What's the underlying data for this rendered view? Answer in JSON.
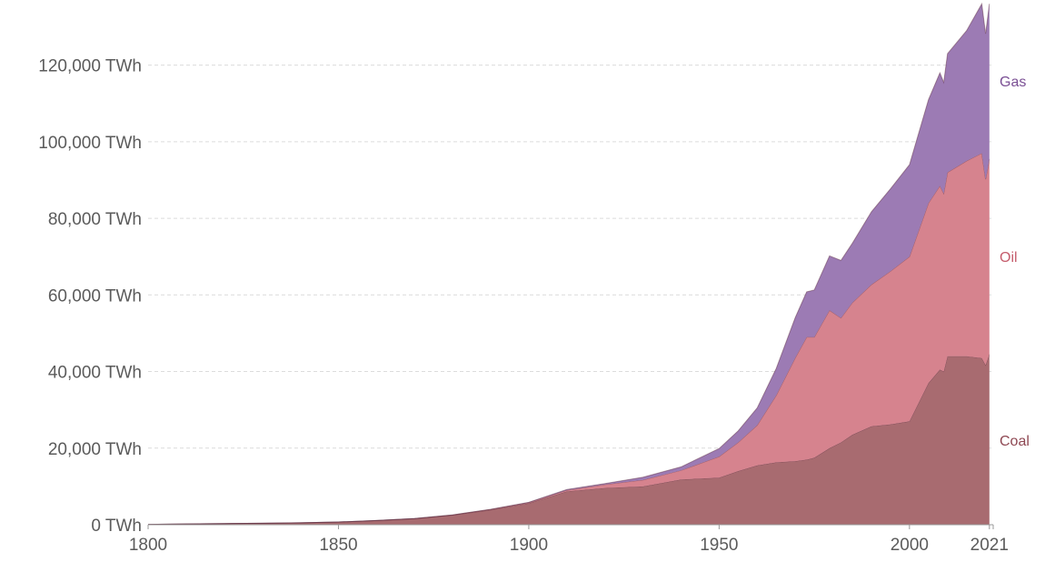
{
  "chart_data": {
    "type": "area",
    "stacked": true,
    "title": "",
    "xlabel": "",
    "ylabel": "",
    "xlim": [
      1800,
      2022
    ],
    "ylim": [
      0,
      137000
    ],
    "grid": true,
    "legend_placement": "inline-right",
    "y_ticks": [
      {
        "value": 0,
        "label": "0 TWh"
      },
      {
        "value": 20000,
        "label": "20,000 TWh"
      },
      {
        "value": 40000,
        "label": "40,000 TWh"
      },
      {
        "value": 60000,
        "label": "60,000 TWh"
      },
      {
        "value": 80000,
        "label": "80,000 TWh"
      },
      {
        "value": 100000,
        "label": "100,000 TWh"
      },
      {
        "value": 120000,
        "label": "120,000 TWh"
      }
    ],
    "x_ticks": [
      {
        "value": 1800,
        "label": "1800"
      },
      {
        "value": 1850,
        "label": "1850"
      },
      {
        "value": 1900,
        "label": "1900"
      },
      {
        "value": 1950,
        "label": "1950"
      },
      {
        "value": 2000,
        "label": "2000"
      },
      {
        "value": 2021,
        "label": "2021"
      }
    ],
    "x": [
      1800,
      1810,
      1820,
      1830,
      1840,
      1850,
      1860,
      1870,
      1880,
      1890,
      1900,
      1910,
      1920,
      1930,
      1940,
      1950,
      1955,
      1960,
      1965,
      1970,
      1973,
      1975,
      1979,
      1982,
      1985,
      1990,
      1995,
      2000,
      2005,
      2008,
      2009,
      2010,
      2015,
      2019,
      2020,
      2021
    ],
    "series": [
      {
        "name": "Coal",
        "color": "#a86b70",
        "values": [
          100,
          200,
          300,
          400,
          500,
          700,
          1100,
          1600,
          2500,
          3900,
          5600,
          8700,
          9600,
          10000,
          11800,
          12300,
          14000,
          15500,
          16300,
          16600,
          17000,
          17500,
          20000,
          21500,
          23500,
          25700,
          26200,
          27000,
          37000,
          40500,
          40000,
          44000,
          44000,
          43500,
          41700,
          44500
        ]
      },
      {
        "name": "Oil",
        "color": "#d6838e",
        "values": [
          0,
          0,
          0,
          0,
          0,
          0,
          0,
          10,
          50,
          120,
          180,
          320,
          900,
          1700,
          2400,
          5500,
          7500,
          10500,
          17500,
          27000,
          32000,
          31500,
          36000,
          32500,
          34500,
          37000,
          40000,
          43000,
          47000,
          48000,
          46500,
          48000,
          51000,
          53500,
          48500,
          51000
        ]
      },
      {
        "name": "Gas",
        "color": "#9c7bb4",
        "values": [
          0,
          0,
          0,
          0,
          0,
          0,
          0,
          0,
          0,
          0,
          70,
          170,
          250,
          700,
          900,
          2100,
          3000,
          4500,
          7000,
          10500,
          11800,
          12300,
          14200,
          15000,
          15500,
          19000,
          21500,
          24000,
          27000,
          29500,
          29000,
          31000,
          34000,
          39000,
          38000,
          40500
        ]
      }
    ]
  },
  "series_labels": {
    "gas": "Gas",
    "oil": "Oil",
    "coal": "Coal"
  }
}
